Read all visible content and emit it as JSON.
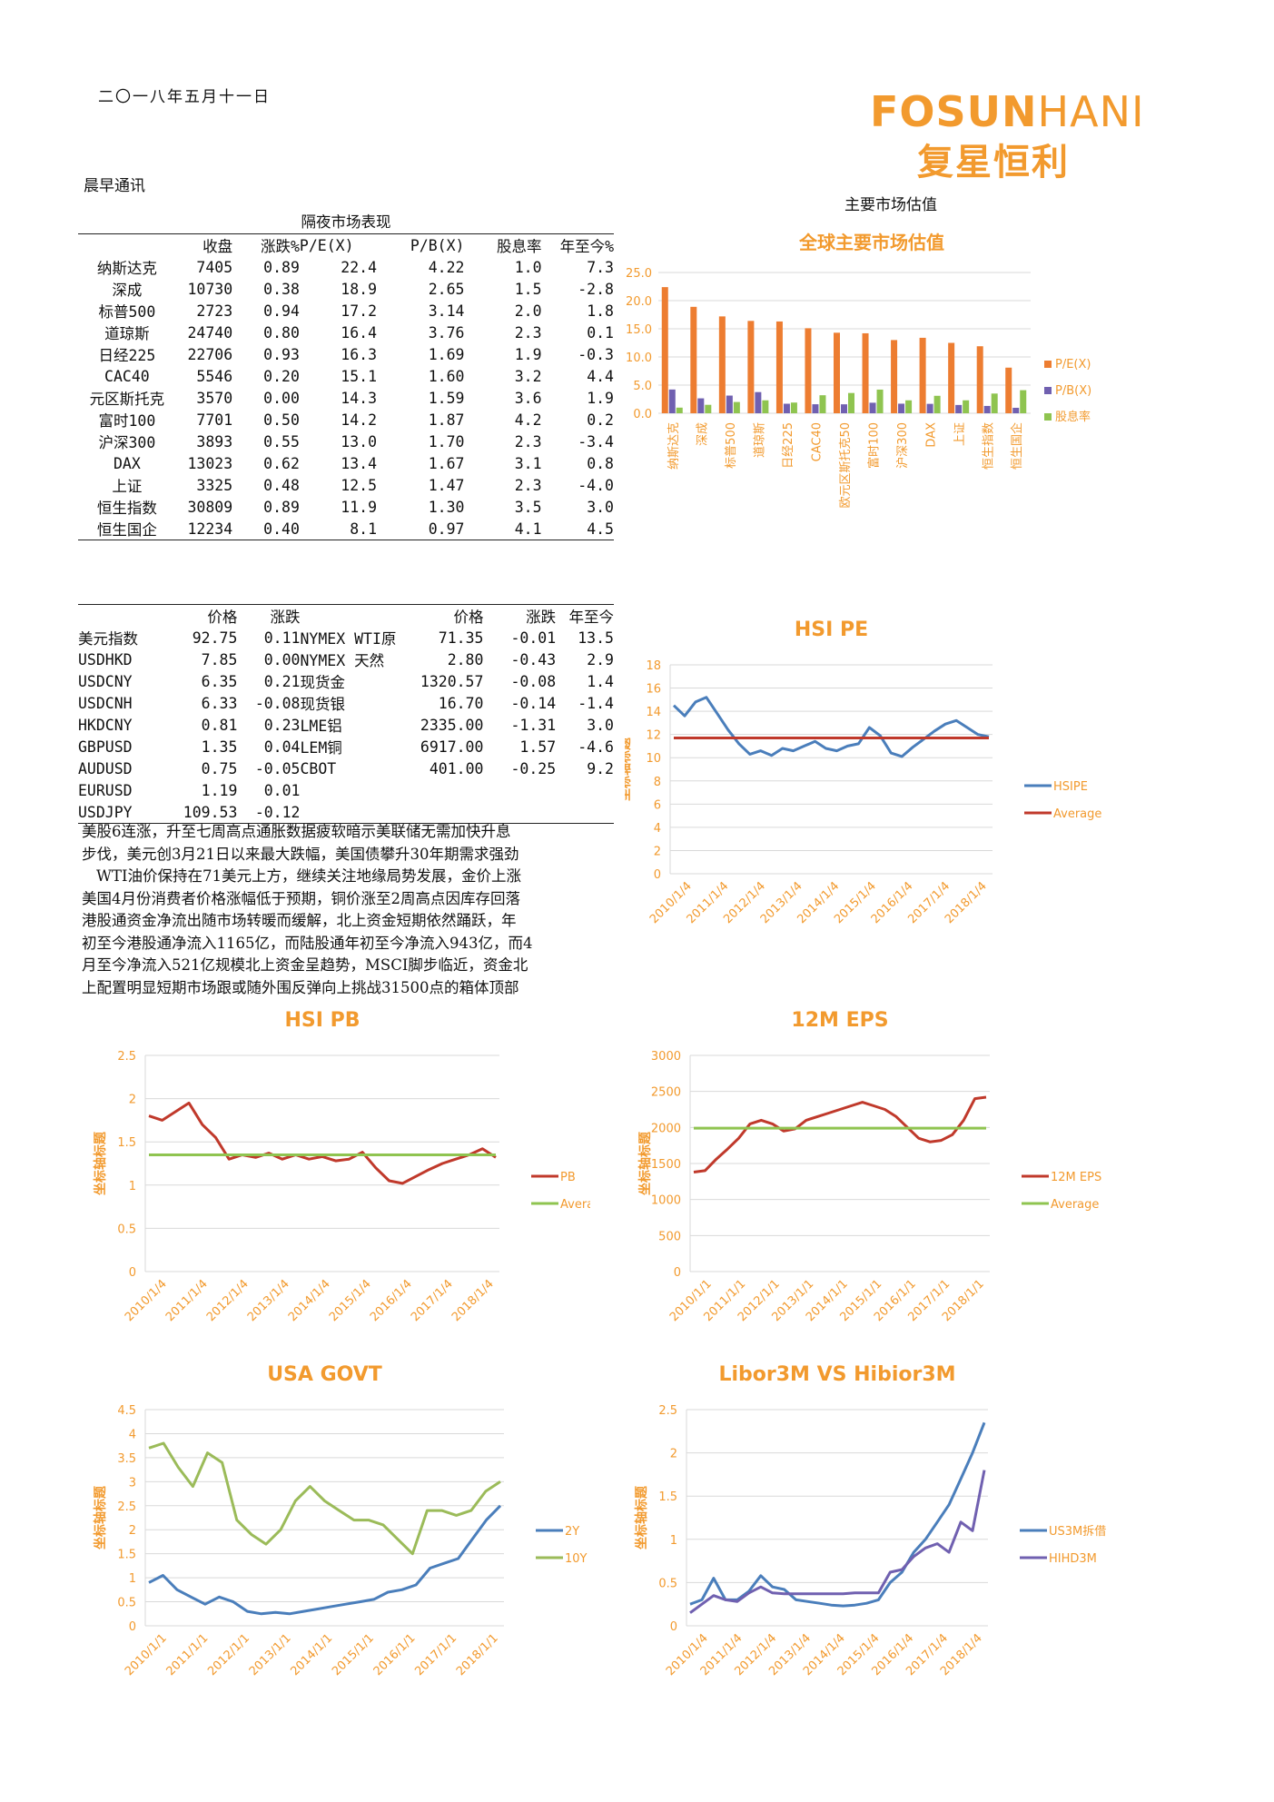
{
  "header": {
    "date": "二〇一八年五月十一日",
    "brand_en_a": "FOSUN",
    "brand_en_b": "HANI",
    "brand_cn": "复星恒利",
    "section": "晨早通讯",
    "right_title": "主要市场估值",
    "brand_color": "#f29a2e"
  },
  "overnight": {
    "caption": "隔夜市场表现",
    "headers": [
      "",
      "收盘",
      "涨跌%",
      "P/E(X)",
      "P/B(X)",
      "股息率",
      "年至今%"
    ],
    "rows": [
      [
        "纳斯达克",
        "7405",
        "0.89",
        "22.4",
        "4.22",
        "1.0",
        "7.3"
      ],
      [
        "深成",
        "10730",
        "0.38",
        "18.9",
        "2.65",
        "1.5",
        "-2.8"
      ],
      [
        "标普500",
        "2723",
        "0.94",
        "17.2",
        "3.14",
        "2.0",
        "1.8"
      ],
      [
        "道琼斯",
        "24740",
        "0.80",
        "16.4",
        "3.76",
        "2.3",
        "0.1"
      ],
      [
        "日经225",
        "22706",
        "0.93",
        "16.3",
        "1.69",
        "1.9",
        "-0.3"
      ],
      [
        "CAC40",
        "5546",
        "0.20",
        "15.1",
        "1.60",
        "3.2",
        "4.4"
      ],
      [
        "元区斯托克",
        "3570",
        "0.00",
        "14.3",
        "1.59",
        "3.6",
        "1.9"
      ],
      [
        "富时100",
        "7701",
        "0.50",
        "14.2",
        "1.87",
        "4.2",
        "0.2"
      ],
      [
        "沪深300",
        "3893",
        "0.55",
        "13.0",
        "1.70",
        "2.3",
        "-3.4"
      ],
      [
        "DAX",
        "13023",
        "0.62",
        "13.4",
        "1.67",
        "3.1",
        "0.8"
      ],
      [
        "上证",
        "3325",
        "0.48",
        "12.5",
        "1.47",
        "2.3",
        "-4.0"
      ],
      [
        "恒生指数",
        "30809",
        "0.89",
        "11.9",
        "1.30",
        "3.5",
        "3.0"
      ],
      [
        "恒生国企",
        "12234",
        "0.40",
        "8.1",
        "0.97",
        "4.1",
        "4.5"
      ]
    ]
  },
  "fx": {
    "headers": [
      "",
      "价格",
      "涨跌",
      "",
      "价格",
      "涨跌",
      "年至今"
    ],
    "rows": [
      [
        "美元指数",
        "92.75",
        "0.11",
        "NYMEX WTI原",
        "71.35",
        "-0.01",
        "13.5"
      ],
      [
        "USDHKD",
        "7.85",
        "0.00",
        "NYMEX 天然",
        "2.80",
        "-0.43",
        "2.9"
      ],
      [
        "USDCNY",
        "6.35",
        "0.21",
        "现货金",
        "1320.57",
        "-0.08",
        "1.4"
      ],
      [
        "USDCNH",
        "6.33",
        "-0.08",
        "现货银",
        "16.70",
        "-0.14",
        "-1.4"
      ],
      [
        "HKDCNY",
        "0.81",
        "0.23",
        "LME铝",
        "2335.00",
        "-1.31",
        "3.0"
      ],
      [
        "GBPUSD",
        "1.35",
        "0.04",
        "LEM铜",
        "6917.00",
        "1.57",
        "-4.6"
      ],
      [
        "AUDUSD",
        "0.75",
        "-0.05",
        "CBOT",
        "401.00",
        "-0.25",
        "9.2"
      ],
      [
        "EURUSD",
        "1.19",
        "0.01",
        "",
        "",
        "",
        ""
      ],
      [
        "USDJPY",
        "109.53",
        "-0.12",
        "",
        "",
        "",
        ""
      ]
    ]
  },
  "commentary": [
    "美股6连涨，升至七周高点通胀数据疲软暗示美联储无需加快升息",
    "步伐，美元创3月21日以来最大跌幅，美国债攀升30年期需求强劲",
    "WTI油价保持在71美元上方，继续关注地缘局势发展，金价上涨",
    "美国4月份消费者价格涨幅低于预期，铜价涨至2周高点因库存回落",
    "港股通资金净流出随市场转暖而缓解，北上资金短期依然踊跃，年",
    "初至今港股通净流入1165亿，而陆股通年初至今净流入943亿，而4",
    "月至今净流入521亿规模北上资金呈趋势，MSCI脚步临近，资金北",
    "上配置明显短期市场跟或随外围反弹向上挑战31500点的箱体顶部"
  ],
  "chart_data": [
    {
      "id": "valuation",
      "type": "bar",
      "title": "全球主要市场估值",
      "categories": [
        "纳斯达克",
        "深成",
        "标普500",
        "道琼斯",
        "日经225",
        "CAC40",
        "欧元区斯托克50",
        "富时100",
        "沪深300",
        "DAX",
        "上证",
        "恒生指数",
        "恒生国企"
      ],
      "series": [
        {
          "name": "P/E(X)",
          "color": "#ed7d31",
          "values": [
            22.4,
            18.9,
            17.2,
            16.4,
            16.3,
            15.1,
            14.3,
            14.2,
            13.0,
            13.4,
            12.5,
            11.9,
            8.1
          ]
        },
        {
          "name": "P/B(X)",
          "color": "#7060b0",
          "values": [
            4.22,
            2.65,
            3.14,
            3.76,
            1.69,
            1.6,
            1.59,
            1.87,
            1.7,
            1.67,
            1.47,
            1.3,
            0.97
          ]
        },
        {
          "name": "股息率",
          "color": "#8fc450",
          "values": [
            1.0,
            1.5,
            2.0,
            2.3,
            1.9,
            3.2,
            3.6,
            4.2,
            2.3,
            3.1,
            2.3,
            3.5,
            4.1
          ]
        }
      ],
      "yticks": [
        "0.0",
        "5.0",
        "10.0",
        "15.0",
        "20.0",
        "25.0"
      ],
      "ylim": [
        0,
        25
      ],
      "legend": "right"
    },
    {
      "id": "hsipe",
      "type": "line",
      "title": "HSI PE",
      "ylabel": "坐标轴标题",
      "ylim": [
        0,
        18
      ],
      "yticks": [
        "0",
        "2",
        "4",
        "6",
        "8",
        "10",
        "12",
        "14",
        "16",
        "18"
      ],
      "xticks": [
        "2010/1/4",
        "2011/1/4",
        "2012/1/4",
        "2013/1/4",
        "2014/1/4",
        "2015/1/4",
        "2016/1/4",
        "2017/1/4",
        "2018/1/4"
      ],
      "series": [
        {
          "name": "HSIPE",
          "color": "#4a7ebb",
          "values": [
            14.5,
            13.6,
            14.8,
            15.2,
            13.8,
            12.4,
            11.2,
            10.3,
            10.6,
            10.2,
            10.8,
            10.6,
            11.0,
            11.4,
            10.8,
            10.6,
            11.0,
            11.2,
            12.6,
            11.9,
            10.4,
            10.1,
            10.9,
            11.6,
            12.3,
            12.9,
            13.2,
            12.6,
            12.0,
            11.8
          ]
        },
        {
          "name": "Average",
          "color": "#c0392b",
          "values": [
            11.7,
            11.7
          ]
        }
      ],
      "legend": "right"
    },
    {
      "id": "hsipb",
      "type": "line",
      "title": "HSI PB",
      "ylabel": "坐标轴标题",
      "ylim": [
        0,
        2.5
      ],
      "yticks": [
        "0",
        "0.5",
        "1",
        "1.5",
        "2",
        "2.5"
      ],
      "xticks": [
        "2010/1/4",
        "2011/1/4",
        "2012/1/4",
        "2013/1/4",
        "2014/1/4",
        "2015/1/4",
        "2016/1/4",
        "2017/1/4",
        "2018/1/4"
      ],
      "series": [
        {
          "name": "PB",
          "color": "#c0392b",
          "values": [
            1.8,
            1.75,
            1.85,
            1.95,
            1.7,
            1.55,
            1.3,
            1.35,
            1.32,
            1.37,
            1.3,
            1.35,
            1.3,
            1.33,
            1.28,
            1.3,
            1.38,
            1.2,
            1.05,
            1.02,
            1.1,
            1.18,
            1.25,
            1.3,
            1.35,
            1.42,
            1.32
          ]
        },
        {
          "name": "Average",
          "color": "#8fc450",
          "values": [
            1.35,
            1.35
          ]
        }
      ],
      "legend": "right"
    },
    {
      "id": "eps",
      "type": "line",
      "title": "12M EPS",
      "ylabel": "坐标轴标题",
      "ylim": [
        0,
        3000
      ],
      "yticks": [
        "0",
        "500",
        "1000",
        "1500",
        "2000",
        "2500",
        "3000"
      ],
      "xticks": [
        "2010/1/1",
        "2011/1/1",
        "2012/1/1",
        "2013/1/1",
        "2014/1/1",
        "2015/1/1",
        "2016/1/1",
        "2017/1/1",
        "2018/1/1"
      ],
      "series": [
        {
          "name": "12M EPS",
          "color": "#c0392b",
          "values": [
            1380,
            1400,
            1560,
            1700,
            1850,
            2050,
            2100,
            2050,
            1950,
            1980,
            2100,
            2150,
            2200,
            2250,
            2300,
            2350,
            2300,
            2250,
            2150,
            2000,
            1850,
            1800,
            1820,
            1900,
            2100,
            2400,
            2420
          ]
        },
        {
          "name": "Average",
          "color": "#8fc450",
          "values": [
            1990,
            1990
          ]
        }
      ],
      "legend": "right"
    },
    {
      "id": "govt",
      "type": "line",
      "title": "USA GOVT",
      "ylabel": "坐标轴标题",
      "ylim": [
        0,
        4.5
      ],
      "yticks": [
        "0",
        "0.5",
        "1",
        "1.5",
        "2",
        "2.5",
        "3",
        "3.5",
        "4",
        "4.5"
      ],
      "xticks": [
        "2010/1/1",
        "2011/1/1",
        "2012/1/1",
        "2013/1/1",
        "2014/1/1",
        "2015/1/1",
        "2016/1/1",
        "2017/1/1",
        "2018/1/1"
      ],
      "series": [
        {
          "name": "2Y",
          "color": "#4a7ebb",
          "values": [
            0.9,
            1.05,
            0.75,
            0.6,
            0.45,
            0.6,
            0.5,
            0.3,
            0.25,
            0.28,
            0.25,
            0.3,
            0.35,
            0.4,
            0.45,
            0.5,
            0.55,
            0.7,
            0.75,
            0.85,
            1.2,
            1.3,
            1.4,
            1.8,
            2.2,
            2.5
          ]
        },
        {
          "name": "10Y",
          "color": "#9bbb59",
          "values": [
            3.7,
            3.8,
            3.3,
            2.9,
            3.6,
            3.4,
            2.2,
            1.9,
            1.7,
            2.0,
            2.6,
            2.9,
            2.6,
            2.4,
            2.2,
            2.2,
            2.1,
            1.8,
            1.5,
            2.4,
            2.4,
            2.3,
            2.4,
            2.8,
            3.0
          ]
        }
      ],
      "legend": "right"
    },
    {
      "id": "libor",
      "type": "line",
      "title": "Libor3M VS Hibior3M",
      "ylabel": "坐标轴标题",
      "ylim": [
        0,
        2.5
      ],
      "yticks": [
        "0",
        "0.5",
        "1",
        "1.5",
        "2",
        "2.5"
      ],
      "xticks": [
        "2010/1/4",
        "2011/1/4",
        "2012/1/4",
        "2013/1/4",
        "2014/1/4",
        "2015/1/4",
        "2016/1/4",
        "2017/1/4",
        "2018/1/4"
      ],
      "series": [
        {
          "name": "US3M拆借",
          "color": "#4a7ebb",
          "values": [
            0.25,
            0.3,
            0.55,
            0.3,
            0.3,
            0.4,
            0.58,
            0.45,
            0.42,
            0.3,
            0.28,
            0.26,
            0.24,
            0.23,
            0.24,
            0.26,
            0.3,
            0.5,
            0.62,
            0.85,
            1.0,
            1.2,
            1.4,
            1.7,
            2.0,
            2.35
          ]
        },
        {
          "name": "HIHD3M",
          "color": "#7060b0",
          "values": [
            0.15,
            0.25,
            0.35,
            0.3,
            0.28,
            0.38,
            0.45,
            0.38,
            0.37,
            0.37,
            0.37,
            0.37,
            0.37,
            0.37,
            0.38,
            0.38,
            0.38,
            0.62,
            0.65,
            0.8,
            0.9,
            0.95,
            0.85,
            1.2,
            1.1,
            1.8
          ]
        }
      ],
      "legend": "right"
    }
  ]
}
